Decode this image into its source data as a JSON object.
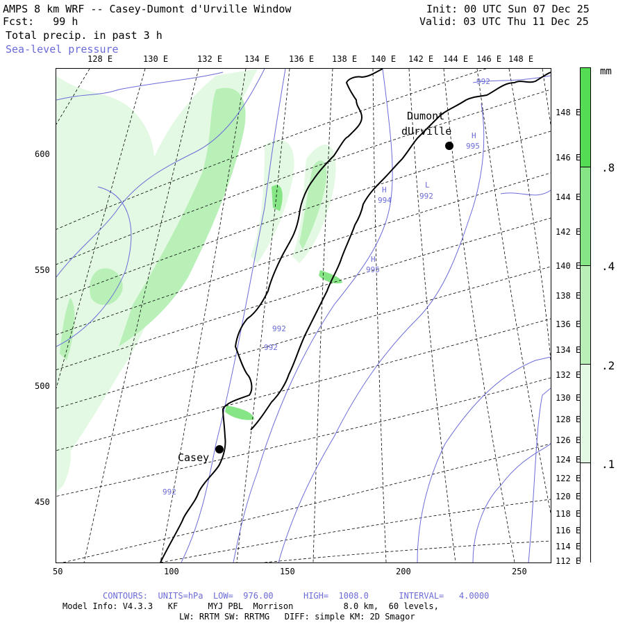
{
  "header": {
    "title": "AMPS 8 km WRF -- Casey-Dumont d'Urville Window",
    "forecast": "Fcst:   99 h",
    "field": "Total precip. in past 3 h",
    "overlay": "Sea-level pressure",
    "init": "Init: 00 UTC Sun 07 Dec 25",
    "valid": "Valid: 03 UTC Thu 11 Dec 25"
  },
  "top_lon_labels": [
    "128 E",
    "130 E",
    "132 E",
    "134 E",
    "136 E",
    "138 E",
    "140 E",
    "142 E",
    "144 E",
    "146 E",
    "148 E"
  ],
  "right_lon_labels": [
    "148 E",
    "146 E",
    "144 E",
    "142 E",
    "140 E",
    "138 E",
    "136 E",
    "134 E",
    "132 E",
    "130 E",
    "128 E",
    "126 E",
    "124 E",
    "122 E",
    "120 E",
    "118 E",
    "116 E",
    "114 E",
    "112 E"
  ],
  "y_axis_labels": [
    "600",
    "550",
    "500",
    "450"
  ],
  "x_axis_labels": [
    "50",
    "100",
    "150",
    "200",
    "250"
  ],
  "colorbar": {
    "unit": "mm",
    "labels": [
      ".8",
      ".4",
      ".2",
      ".1"
    ],
    "colors": [
      "#ffffff",
      "#e3f9e3",
      "#b8f0b8",
      "#86e686",
      "#55dc55"
    ]
  },
  "places": [
    {
      "name": "Casey"
    },
    {
      "name": "Dumont"
    },
    {
      "name": "dUrville"
    }
  ],
  "pressure_labels": [
    "992",
    "H",
    "994",
    "L",
    "992",
    "H",
    "995",
    "992",
    "992",
    "H",
    "995",
    "992"
  ],
  "footer": {
    "contours": "CONTOURS:  UNITS=hPa  LOW=  976.00      HIGH=  1008.0      INTERVAL=   4.0000",
    "model_info": "Model Info: V4.3.3   KF      MYJ PBL  Morrison          8.0 km,  60 levels,",
    "physics": "LW: RRTM SW: RRTMG   DIFF: simple KM: 2D Smagor"
  }
}
